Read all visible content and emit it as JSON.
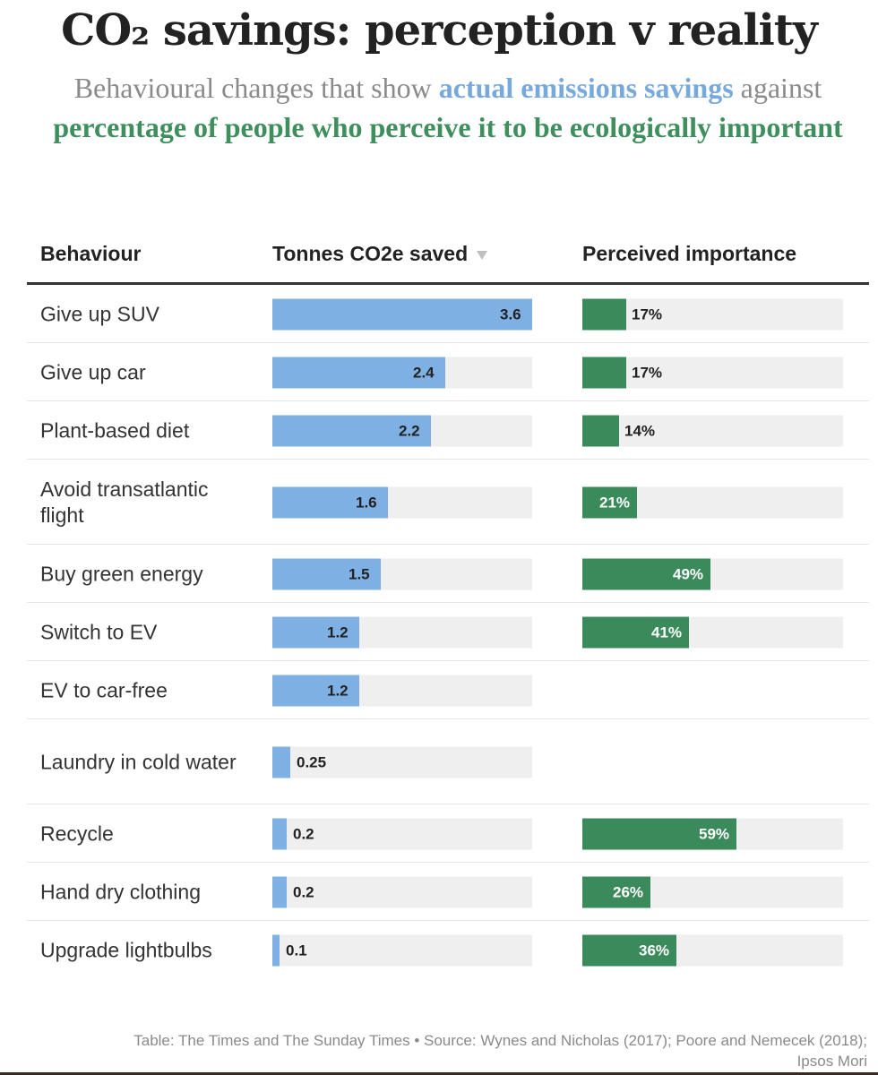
{
  "chart_data": {
    "type": "table",
    "title": "CO₂ savings: perception v reality",
    "subtitle": {
      "part1": "Behavioural changes that show",
      "highlight_blue": "actual emissions savings",
      "part2": "against",
      "highlight_green": "percentage of people who perceive it to be ecologically important"
    },
    "columns": {
      "behaviour": "Behaviour",
      "co2": "Tonnes CO2e saved",
      "importance": "Perceived importance"
    },
    "co2_max": 3.6,
    "importance_max": 100,
    "rows": [
      {
        "behaviour": "Give up SUV",
        "co2": 3.6,
        "co2_label": "3.6",
        "importance": 17,
        "importance_label": "17%"
      },
      {
        "behaviour": "Give up car",
        "co2": 2.4,
        "co2_label": "2.4",
        "importance": 17,
        "importance_label": "17%"
      },
      {
        "behaviour": "Plant-based diet",
        "co2": 2.2,
        "co2_label": "2.2",
        "importance": 14,
        "importance_label": "14%"
      },
      {
        "behaviour": "Avoid transatlantic flight",
        "co2": 1.6,
        "co2_label": "1.6",
        "importance": 21,
        "importance_label": "21%"
      },
      {
        "behaviour": "Buy green energy",
        "co2": 1.5,
        "co2_label": "1.5",
        "importance": 49,
        "importance_label": "49%"
      },
      {
        "behaviour": "Switch to EV",
        "co2": 1.2,
        "co2_label": "1.2",
        "importance": 41,
        "importance_label": "41%"
      },
      {
        "behaviour": "EV to car-free",
        "co2": 1.2,
        "co2_label": "1.2",
        "importance": null,
        "importance_label": ""
      },
      {
        "behaviour": "Laundry in cold water",
        "co2": 0.25,
        "co2_label": "0.25",
        "importance": null,
        "importance_label": ""
      },
      {
        "behaviour": "Recycle",
        "co2": 0.2,
        "co2_label": "0.2",
        "importance": 59,
        "importance_label": "59%"
      },
      {
        "behaviour": "Hand dry clothing",
        "co2": 0.2,
        "co2_label": "0.2",
        "importance": 26,
        "importance_label": "26%"
      },
      {
        "behaviour": "Upgrade lightbulbs",
        "co2": 0.1,
        "co2_label": "0.1",
        "importance": 36,
        "importance_label": "36%"
      }
    ],
    "colors": {
      "co2_bar": "#7fb0e3",
      "importance_bar": "#3b8a5b",
      "track": "#efefef"
    }
  },
  "footer": "Table: The Times and The Sunday Times • Source: Wynes and Nicholas (2017); Poore and Nemecek (2018); Ipsos Mori"
}
